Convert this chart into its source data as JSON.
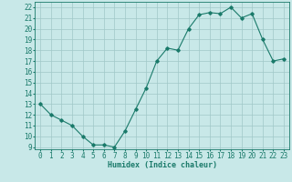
{
  "x": [
    0,
    1,
    2,
    3,
    4,
    5,
    6,
    7,
    8,
    9,
    10,
    11,
    12,
    13,
    14,
    15,
    16,
    17,
    18,
    19,
    20,
    21,
    22,
    23
  ],
  "y": [
    13,
    12,
    11.5,
    11,
    10,
    9.2,
    9.2,
    9.0,
    10.5,
    12.5,
    14.5,
    17.0,
    18.2,
    18.0,
    20.0,
    21.3,
    21.5,
    21.4,
    22.0,
    21.0,
    21.4,
    19.0,
    17.0,
    17.2
  ],
  "line_color": "#1a7a6a",
  "marker": "D",
  "marker_size": 1.8,
  "line_width": 0.8,
  "bg_color": "#c8e8e8",
  "grid_color": "#a0c8c8",
  "xlabel": "Humidex (Indice chaleur)",
  "xlabel_fontsize": 6.0,
  "tick_fontsize": 5.5,
  "ylim": [
    8.8,
    22.5
  ],
  "xlim": [
    -0.5,
    23.5
  ],
  "yticks": [
    9,
    10,
    11,
    12,
    13,
    14,
    15,
    16,
    17,
    18,
    19,
    20,
    21,
    22
  ],
  "xticks": [
    0,
    1,
    2,
    3,
    4,
    5,
    6,
    7,
    8,
    9,
    10,
    11,
    12,
    13,
    14,
    15,
    16,
    17,
    18,
    19,
    20,
    21,
    22,
    23
  ]
}
